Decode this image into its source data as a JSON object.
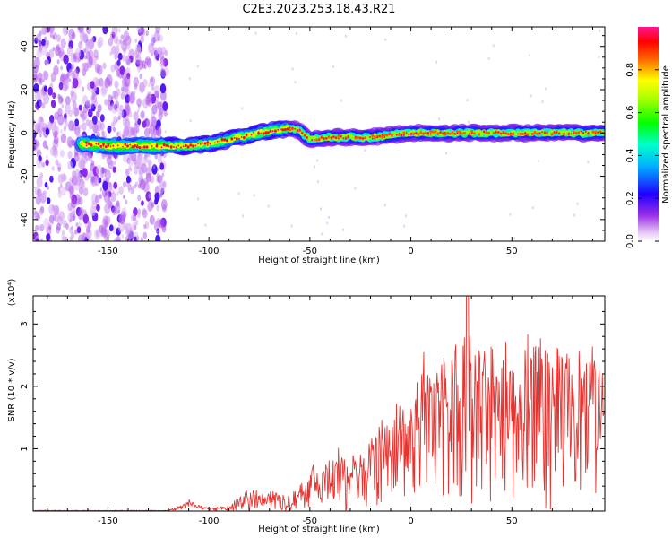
{
  "figure_title": "C2E3.2023.253.18.43.R21",
  "chart_data": [
    {
      "type": "heatmap",
      "xlabel": "Height of straight line (km)",
      "ylabel": "Frequency (Hz)",
      "xlim": [
        -187,
        96
      ],
      "ylim": [
        -50,
        49
      ],
      "x_ticks": [
        -150,
        -100,
        -50,
        0,
        50
      ],
      "y_ticks": [
        -40,
        -20,
        0,
        20,
        40
      ],
      "colorbar": {
        "label": "Normalized spectral amplitude",
        "range": [
          0,
          1
        ],
        "ticks": [
          0.0,
          0.2,
          0.4,
          0.6,
          0.8
        ],
        "tick_labels": [
          "0.0",
          "0.2",
          "0.4",
          "0.6",
          "0.8"
        ],
        "colors": [
          "#ffffff",
          "#d7a8f0",
          "#8a2be2",
          "#0000ff",
          "#00e5ff",
          "#00ff00",
          "#ffff00",
          "#ff3300",
          "#ff1493"
        ]
      },
      "ridge": {
        "x": [
          -163,
          -150,
          -140,
          -130,
          -120,
          -110,
          -100,
          -90,
          -80,
          -70,
          -60,
          -55,
          -50,
          -40,
          -30,
          -20,
          -10,
          0,
          10,
          20,
          30,
          40,
          50,
          60,
          70,
          80,
          90,
          96
        ],
        "y": [
          -5,
          -6,
          -6,
          -6,
          -6,
          -6,
          -5,
          -3,
          -1,
          1,
          2,
          1,
          -3,
          -2,
          -2,
          -2,
          -1,
          0,
          0,
          0,
          0,
          0,
          0,
          0,
          0,
          0,
          0,
          0
        ]
      },
      "noise_region": [
        -187,
        -125
      ]
    },
    {
      "type": "line",
      "xlabel": "Height of straight line (km)",
      "ylabel": "SNR (10 * v/v)",
      "y_multiplier": "(x10⁴)",
      "xlim": [
        -187,
        96
      ],
      "ylim": [
        0,
        3.45
      ],
      "x_ticks": [
        -150,
        -100,
        -50,
        0,
        50
      ],
      "y_ticks": [
        1,
        2,
        3
      ],
      "color": "#e8322e",
      "envelope": {
        "x": [
          -187,
          -120,
          -112,
          -110,
          -107,
          -100,
          -90,
          -82,
          -80,
          -75,
          -70,
          -60,
          -55,
          -50,
          -45,
          -40,
          -35,
          -30,
          -25,
          -20,
          -15,
          -10,
          -5,
          0,
          5,
          10,
          15,
          20,
          25,
          28,
          30,
          35,
          40,
          45,
          50,
          55,
          60,
          65,
          70,
          75,
          80,
          85,
          90,
          96
        ],
        "y": [
          0.01,
          0.01,
          0.12,
          0.2,
          0.12,
          0.05,
          0.1,
          0.35,
          0.42,
          0.3,
          0.35,
          0.35,
          0.45,
          0.85,
          0.6,
          0.95,
          1.1,
          1.25,
          1.0,
          1.3,
          1.6,
          1.9,
          2.1,
          2.3,
          2.6,
          2.4,
          2.7,
          2.9,
          3.1,
          3.45,
          3.2,
          2.9,
          3.0,
          3.1,
          3.0,
          2.9,
          3.1,
          2.9,
          3.0,
          2.8,
          2.9,
          2.6,
          2.7,
          2.6
        ]
      }
    }
  ]
}
